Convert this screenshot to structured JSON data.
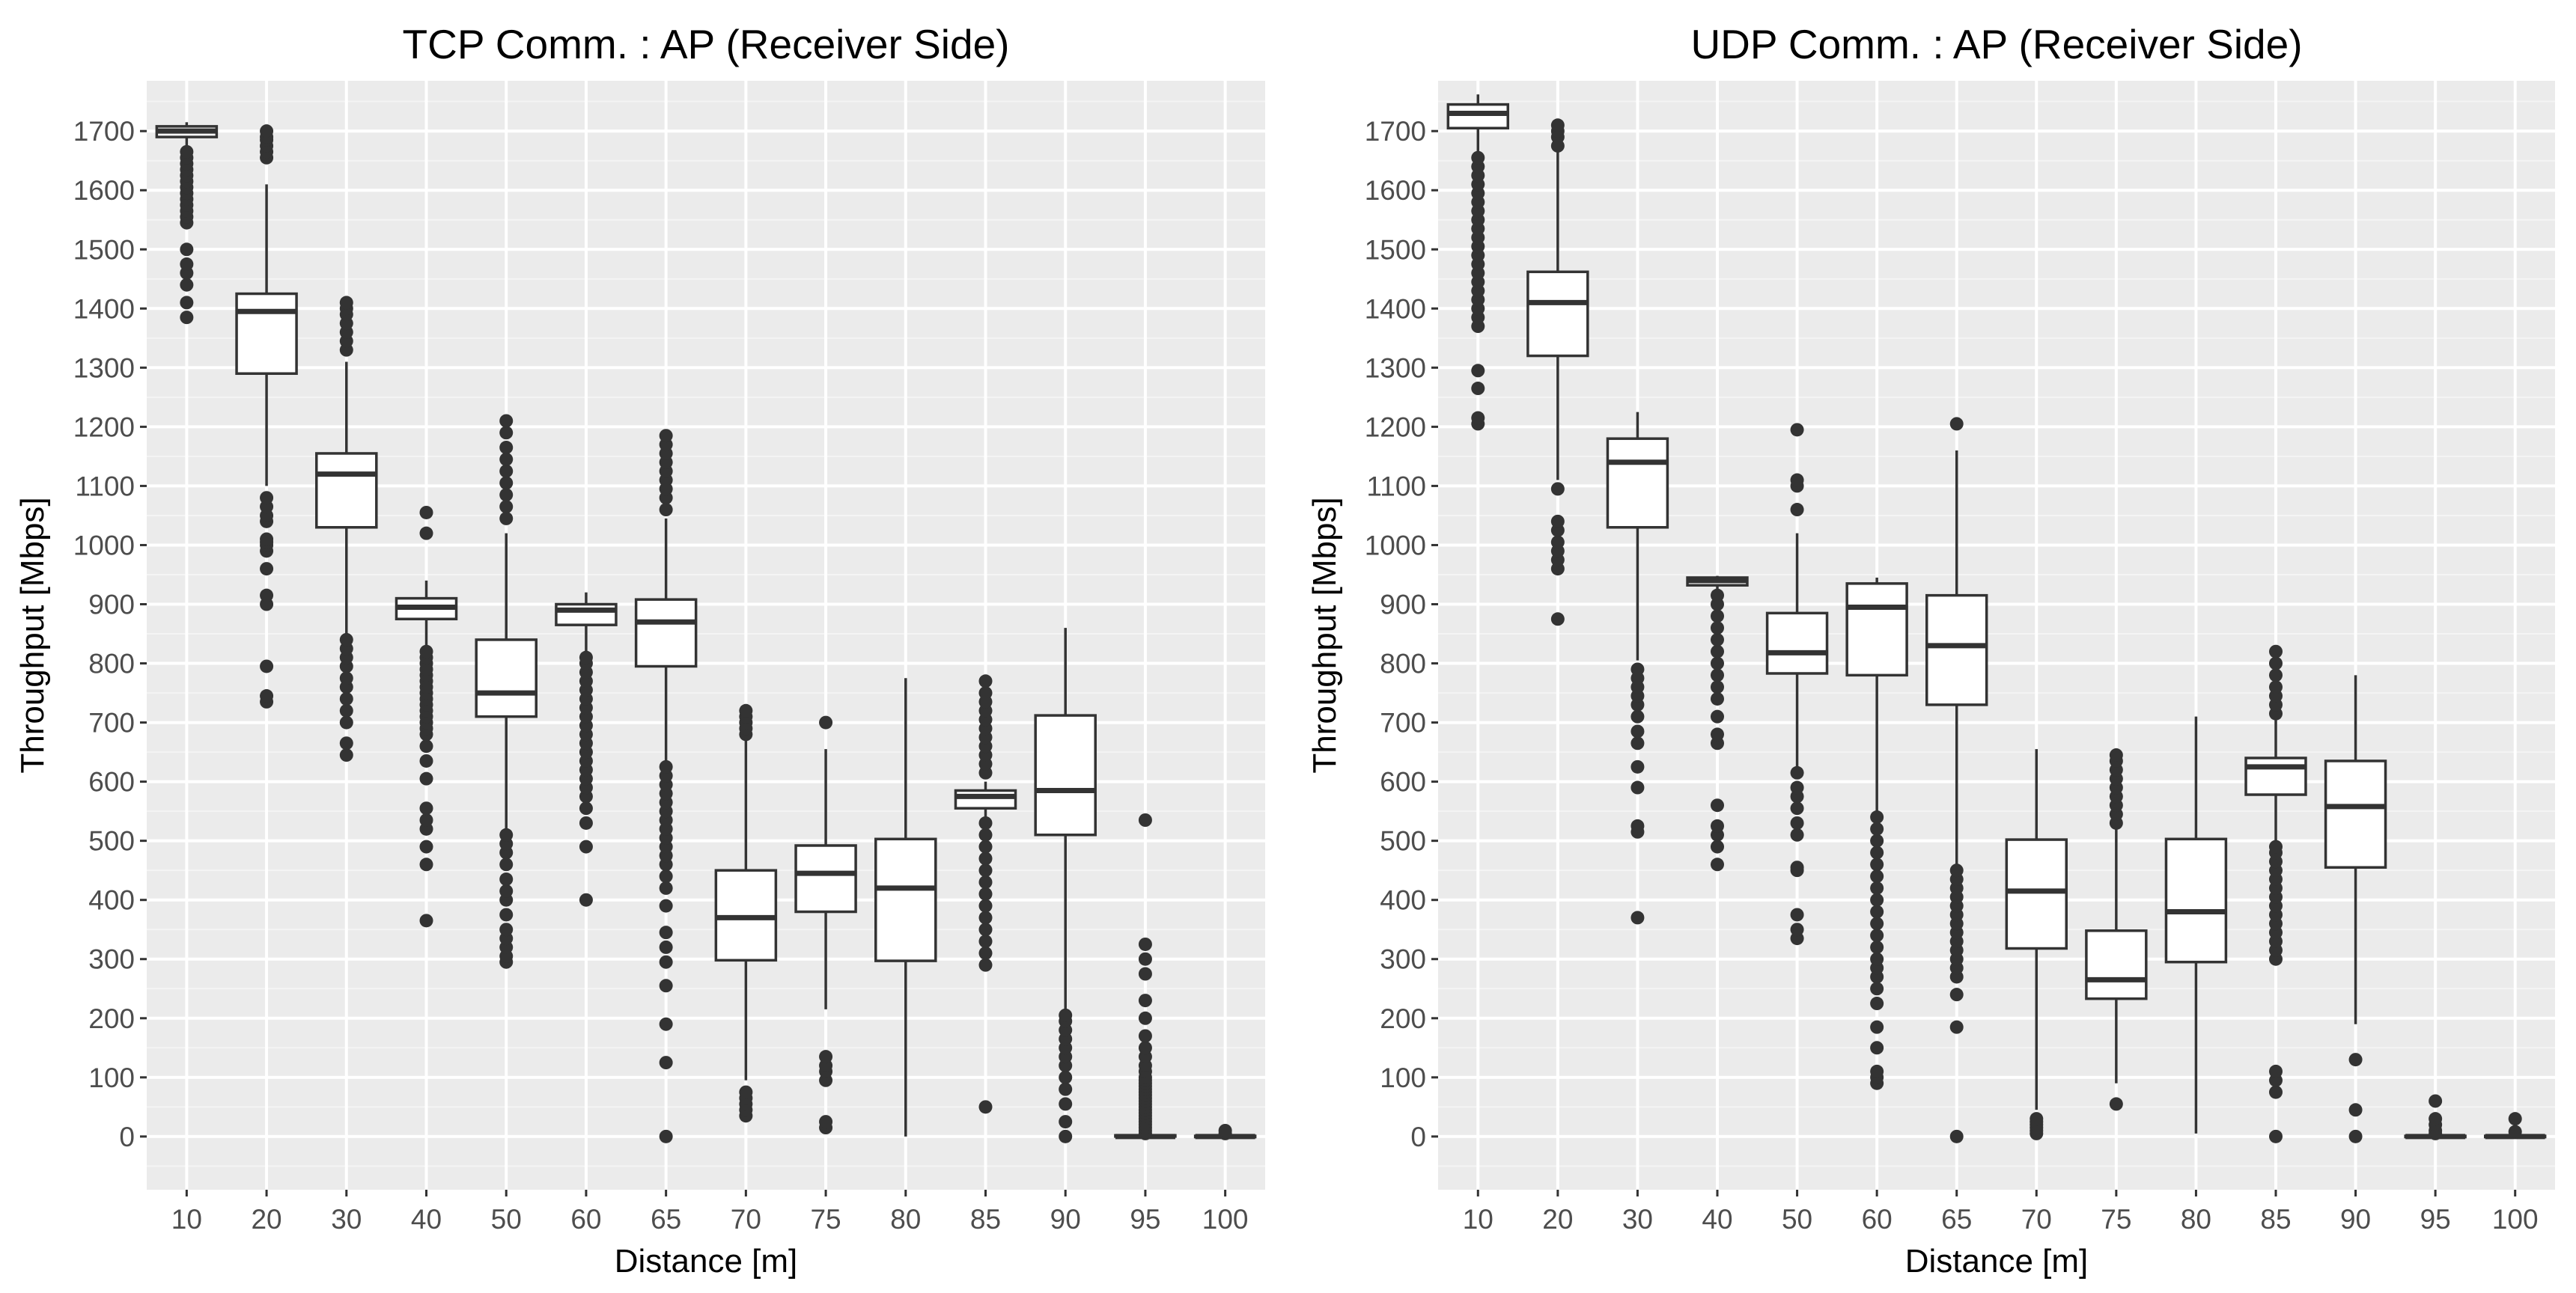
{
  "chart_data": [
    {
      "type": "box",
      "title": "TCP Comm. : AP (Receiver Side)",
      "xlabel": "Distance [m]",
      "ylabel": "Throughput [Mbps]",
      "ylim": [
        -90,
        1785
      ],
      "yticks": [
        0,
        100,
        200,
        300,
        400,
        500,
        600,
        700,
        800,
        900,
        1000,
        1100,
        1200,
        1300,
        1400,
        1500,
        1600,
        1700
      ],
      "categories": [
        "10",
        "20",
        "30",
        "40",
        "50",
        "60",
        "65",
        "70",
        "75",
        "80",
        "85",
        "90",
        "95",
        "100"
      ],
      "boxes": [
        {
          "q1": 1690,
          "median": 1700,
          "q3": 1708,
          "low": 1676,
          "high": 1715,
          "outliers": [
            1385,
            1410,
            1440,
            1460,
            1475,
            1500,
            1545,
            1555,
            1565,
            1575,
            1585,
            1595,
            1605,
            1615,
            1625,
            1635,
            1645,
            1655,
            1665
          ]
        },
        {
          "q1": 1290,
          "median": 1395,
          "q3": 1425,
          "low": 1100,
          "high": 1610,
          "outliers": [
            735,
            745,
            795,
            900,
            915,
            960,
            990,
            1000,
            1005,
            1010,
            1040,
            1050,
            1065,
            1080,
            1655,
            1665,
            1675,
            1685,
            1690,
            1700
          ]
        },
        {
          "q1": 1030,
          "median": 1120,
          "q3": 1155,
          "low": 845,
          "high": 1310,
          "outliers": [
            645,
            665,
            700,
            720,
            740,
            760,
            775,
            795,
            810,
            825,
            840,
            1330,
            1345,
            1360,
            1375,
            1390,
            1400,
            1410
          ]
        },
        {
          "q1": 875,
          "median": 895,
          "q3": 910,
          "low": 830,
          "high": 940,
          "outliers": [
            365,
            460,
            490,
            520,
            535,
            555,
            605,
            635,
            660,
            680,
            690,
            700,
            710,
            720,
            730,
            740,
            750,
            760,
            770,
            780,
            790,
            800,
            810,
            820,
            1020,
            1055
          ]
        },
        {
          "q1": 710,
          "median": 750,
          "q3": 840,
          "low": 520,
          "high": 1020,
          "outliers": [
            295,
            305,
            320,
            335,
            350,
            375,
            400,
            415,
            435,
            460,
            480,
            495,
            510,
            1045,
            1065,
            1085,
            1105,
            1125,
            1145,
            1165,
            1190,
            1210
          ]
        },
        {
          "q1": 865,
          "median": 890,
          "q3": 900,
          "low": 820,
          "high": 920,
          "outliers": [
            400,
            490,
            530,
            555,
            575,
            590,
            605,
            620,
            635,
            650,
            665,
            680,
            695,
            710,
            725,
            740,
            755,
            770,
            785,
            800,
            810
          ]
        },
        {
          "q1": 795,
          "median": 870,
          "q3": 908,
          "low": 630,
          "high": 1045,
          "outliers": [
            0,
            125,
            190,
            255,
            295,
            320,
            345,
            390,
            420,
            440,
            460,
            475,
            490,
            505,
            520,
            535,
            550,
            565,
            580,
            595,
            610,
            625,
            1060,
            1080,
            1095,
            1110,
            1125,
            1140,
            1155,
            1170,
            1185
          ]
        },
        {
          "q1": 298,
          "median": 370,
          "q3": 450,
          "low": 95,
          "high": 670,
          "outliers": [
            35,
            45,
            55,
            65,
            75,
            680,
            690,
            700,
            710,
            720
          ]
        },
        {
          "q1": 380,
          "median": 445,
          "q3": 492,
          "low": 215,
          "high": 655,
          "outliers": [
            15,
            25,
            95,
            110,
            120,
            135,
            700
          ]
        },
        {
          "q1": 297,
          "median": 420,
          "q3": 503,
          "low": 0,
          "high": 775,
          "outliers": []
        },
        {
          "q1": 555,
          "median": 575,
          "q3": 585,
          "low": 540,
          "high": 600,
          "outliers": [
            50,
            290,
            310,
            330,
            350,
            370,
            390,
            410,
            430,
            450,
            470,
            490,
            510,
            530,
            615,
            630,
            645,
            660,
            675,
            690,
            705,
            720,
            735,
            750,
            770
          ]
        },
        {
          "q1": 510,
          "median": 585,
          "q3": 712,
          "low": 210,
          "high": 860,
          "outliers": [
            0,
            25,
            55,
            80,
            100,
            120,
            135,
            150,
            165,
            180,
            195,
            205
          ]
        },
        {
          "q1": 0,
          "median": 0,
          "q3": 2,
          "low": 0,
          "high": 2,
          "outliers": [
            5,
            10,
            15,
            20,
            25,
            30,
            35,
            40,
            45,
            50,
            55,
            60,
            65,
            70,
            75,
            80,
            85,
            90,
            95,
            100,
            110,
            120,
            135,
            150,
            170,
            200,
            230,
            275,
            300,
            325,
            535
          ]
        },
        {
          "q1": 0,
          "median": 0,
          "q3": 1,
          "low": 0,
          "high": 1,
          "outliers": [
            5,
            10
          ]
        }
      ]
    },
    {
      "type": "box",
      "title": "UDP Comm. : AP (Receiver Side)",
      "xlabel": "Distance [m]",
      "ylabel": "Throughput [Mbps]",
      "ylim": [
        -90,
        1785
      ],
      "yticks": [
        0,
        100,
        200,
        300,
        400,
        500,
        600,
        700,
        800,
        900,
        1000,
        1100,
        1200,
        1300,
        1400,
        1500,
        1600,
        1700
      ],
      "categories": [
        "10",
        "20",
        "30",
        "40",
        "50",
        "60",
        "65",
        "70",
        "75",
        "80",
        "85",
        "90",
        "95",
        "100"
      ],
      "boxes": [
        {
          "q1": 1705,
          "median": 1730,
          "q3": 1745,
          "low": 1660,
          "high": 1762,
          "outliers": [
            1205,
            1215,
            1265,
            1295,
            1370,
            1385,
            1400,
            1415,
            1430,
            1445,
            1460,
            1475,
            1490,
            1505,
            1520,
            1535,
            1550,
            1565,
            1580,
            1595,
            1610,
            1625,
            1640,
            1655
          ]
        },
        {
          "q1": 1320,
          "median": 1410,
          "q3": 1462,
          "low": 1110,
          "high": 1665,
          "outliers": [
            875,
            960,
            975,
            990,
            1005,
            1025,
            1040,
            1095,
            1675,
            1690,
            1700,
            1710
          ]
        },
        {
          "q1": 1030,
          "median": 1140,
          "q3": 1180,
          "low": 805,
          "high": 1225,
          "outliers": [
            370,
            515,
            525,
            590,
            625,
            665,
            685,
            710,
            730,
            745,
            760,
            775,
            790
          ]
        },
        {
          "q1": 932,
          "median": 940,
          "q3": 945,
          "low": 925,
          "high": 948,
          "outliers": [
            460,
            490,
            510,
            525,
            560,
            665,
            680,
            710,
            740,
            760,
            780,
            800,
            820,
            840,
            860,
            880,
            900,
            915
          ]
        },
        {
          "q1": 783,
          "median": 818,
          "q3": 885,
          "low": 625,
          "high": 1020,
          "outliers": [
            335,
            350,
            375,
            450,
            455,
            510,
            530,
            555,
            575,
            590,
            615,
            1060,
            1100,
            1110,
            1195
          ]
        },
        {
          "q1": 780,
          "median": 895,
          "q3": 935,
          "low": 545,
          "high": 945,
          "outliers": [
            90,
            100,
            110,
            150,
            185,
            225,
            250,
            270,
            285,
            300,
            320,
            340,
            360,
            380,
            400,
            420,
            440,
            460,
            480,
            500,
            520,
            540
          ]
        },
        {
          "q1": 730,
          "median": 830,
          "q3": 915,
          "low": 455,
          "high": 1160,
          "outliers": [
            0,
            185,
            240,
            270,
            285,
            300,
            315,
            330,
            345,
            360,
            375,
            390,
            405,
            420,
            435,
            450,
            1205
          ]
        },
        {
          "q1": 318,
          "median": 415,
          "q3": 502,
          "low": 45,
          "high": 655,
          "outliers": [
            5,
            10,
            15,
            20,
            25,
            30
          ]
        },
        {
          "q1": 233,
          "median": 265,
          "q3": 348,
          "low": 90,
          "high": 520,
          "outliers": [
            55,
            530,
            545,
            560,
            575,
            590,
            605,
            620,
            635,
            645
          ]
        },
        {
          "q1": 295,
          "median": 380,
          "q3": 503,
          "low": 5,
          "high": 710,
          "outliers": []
        },
        {
          "q1": 578,
          "median": 625,
          "q3": 640,
          "low": 500,
          "high": 705,
          "outliers": [
            0,
            75,
            95,
            110,
            300,
            315,
            330,
            345,
            360,
            375,
            390,
            405,
            420,
            435,
            450,
            465,
            480,
            490,
            715,
            730,
            745,
            760,
            780,
            800,
            820
          ]
        },
        {
          "q1": 455,
          "median": 558,
          "q3": 635,
          "low": 190,
          "high": 780,
          "outliers": [
            0,
            45,
            130
          ]
        },
        {
          "q1": 0,
          "median": 0,
          "q3": 1,
          "low": 0,
          "high": 1,
          "outliers": [
            5,
            10,
            20,
            30,
            60
          ]
        },
        {
          "q1": 0,
          "median": 0,
          "q3": 1,
          "low": 0,
          "high": 1,
          "outliers": [
            8,
            30
          ]
        }
      ]
    }
  ]
}
